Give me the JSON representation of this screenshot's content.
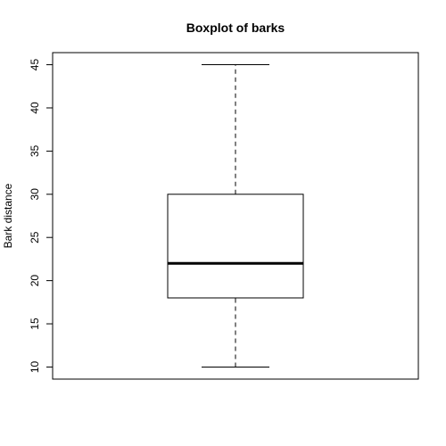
{
  "chart_data": {
    "type": "boxplot",
    "title": "Boxplot of barks",
    "xlabel": "",
    "ylabel": "Bark distance",
    "ylim": [
      8.6,
      46.4
    ],
    "yticks": [
      "10",
      "15",
      "20",
      "25",
      "30",
      "35",
      "40",
      "45"
    ],
    "ytick_values": [
      10,
      15,
      20,
      25,
      30,
      35,
      40,
      45
    ],
    "box": {
      "min": 10,
      "q1": 18,
      "median": 22,
      "q3": 30,
      "max": 45
    },
    "grid": false,
    "legend": false
  }
}
